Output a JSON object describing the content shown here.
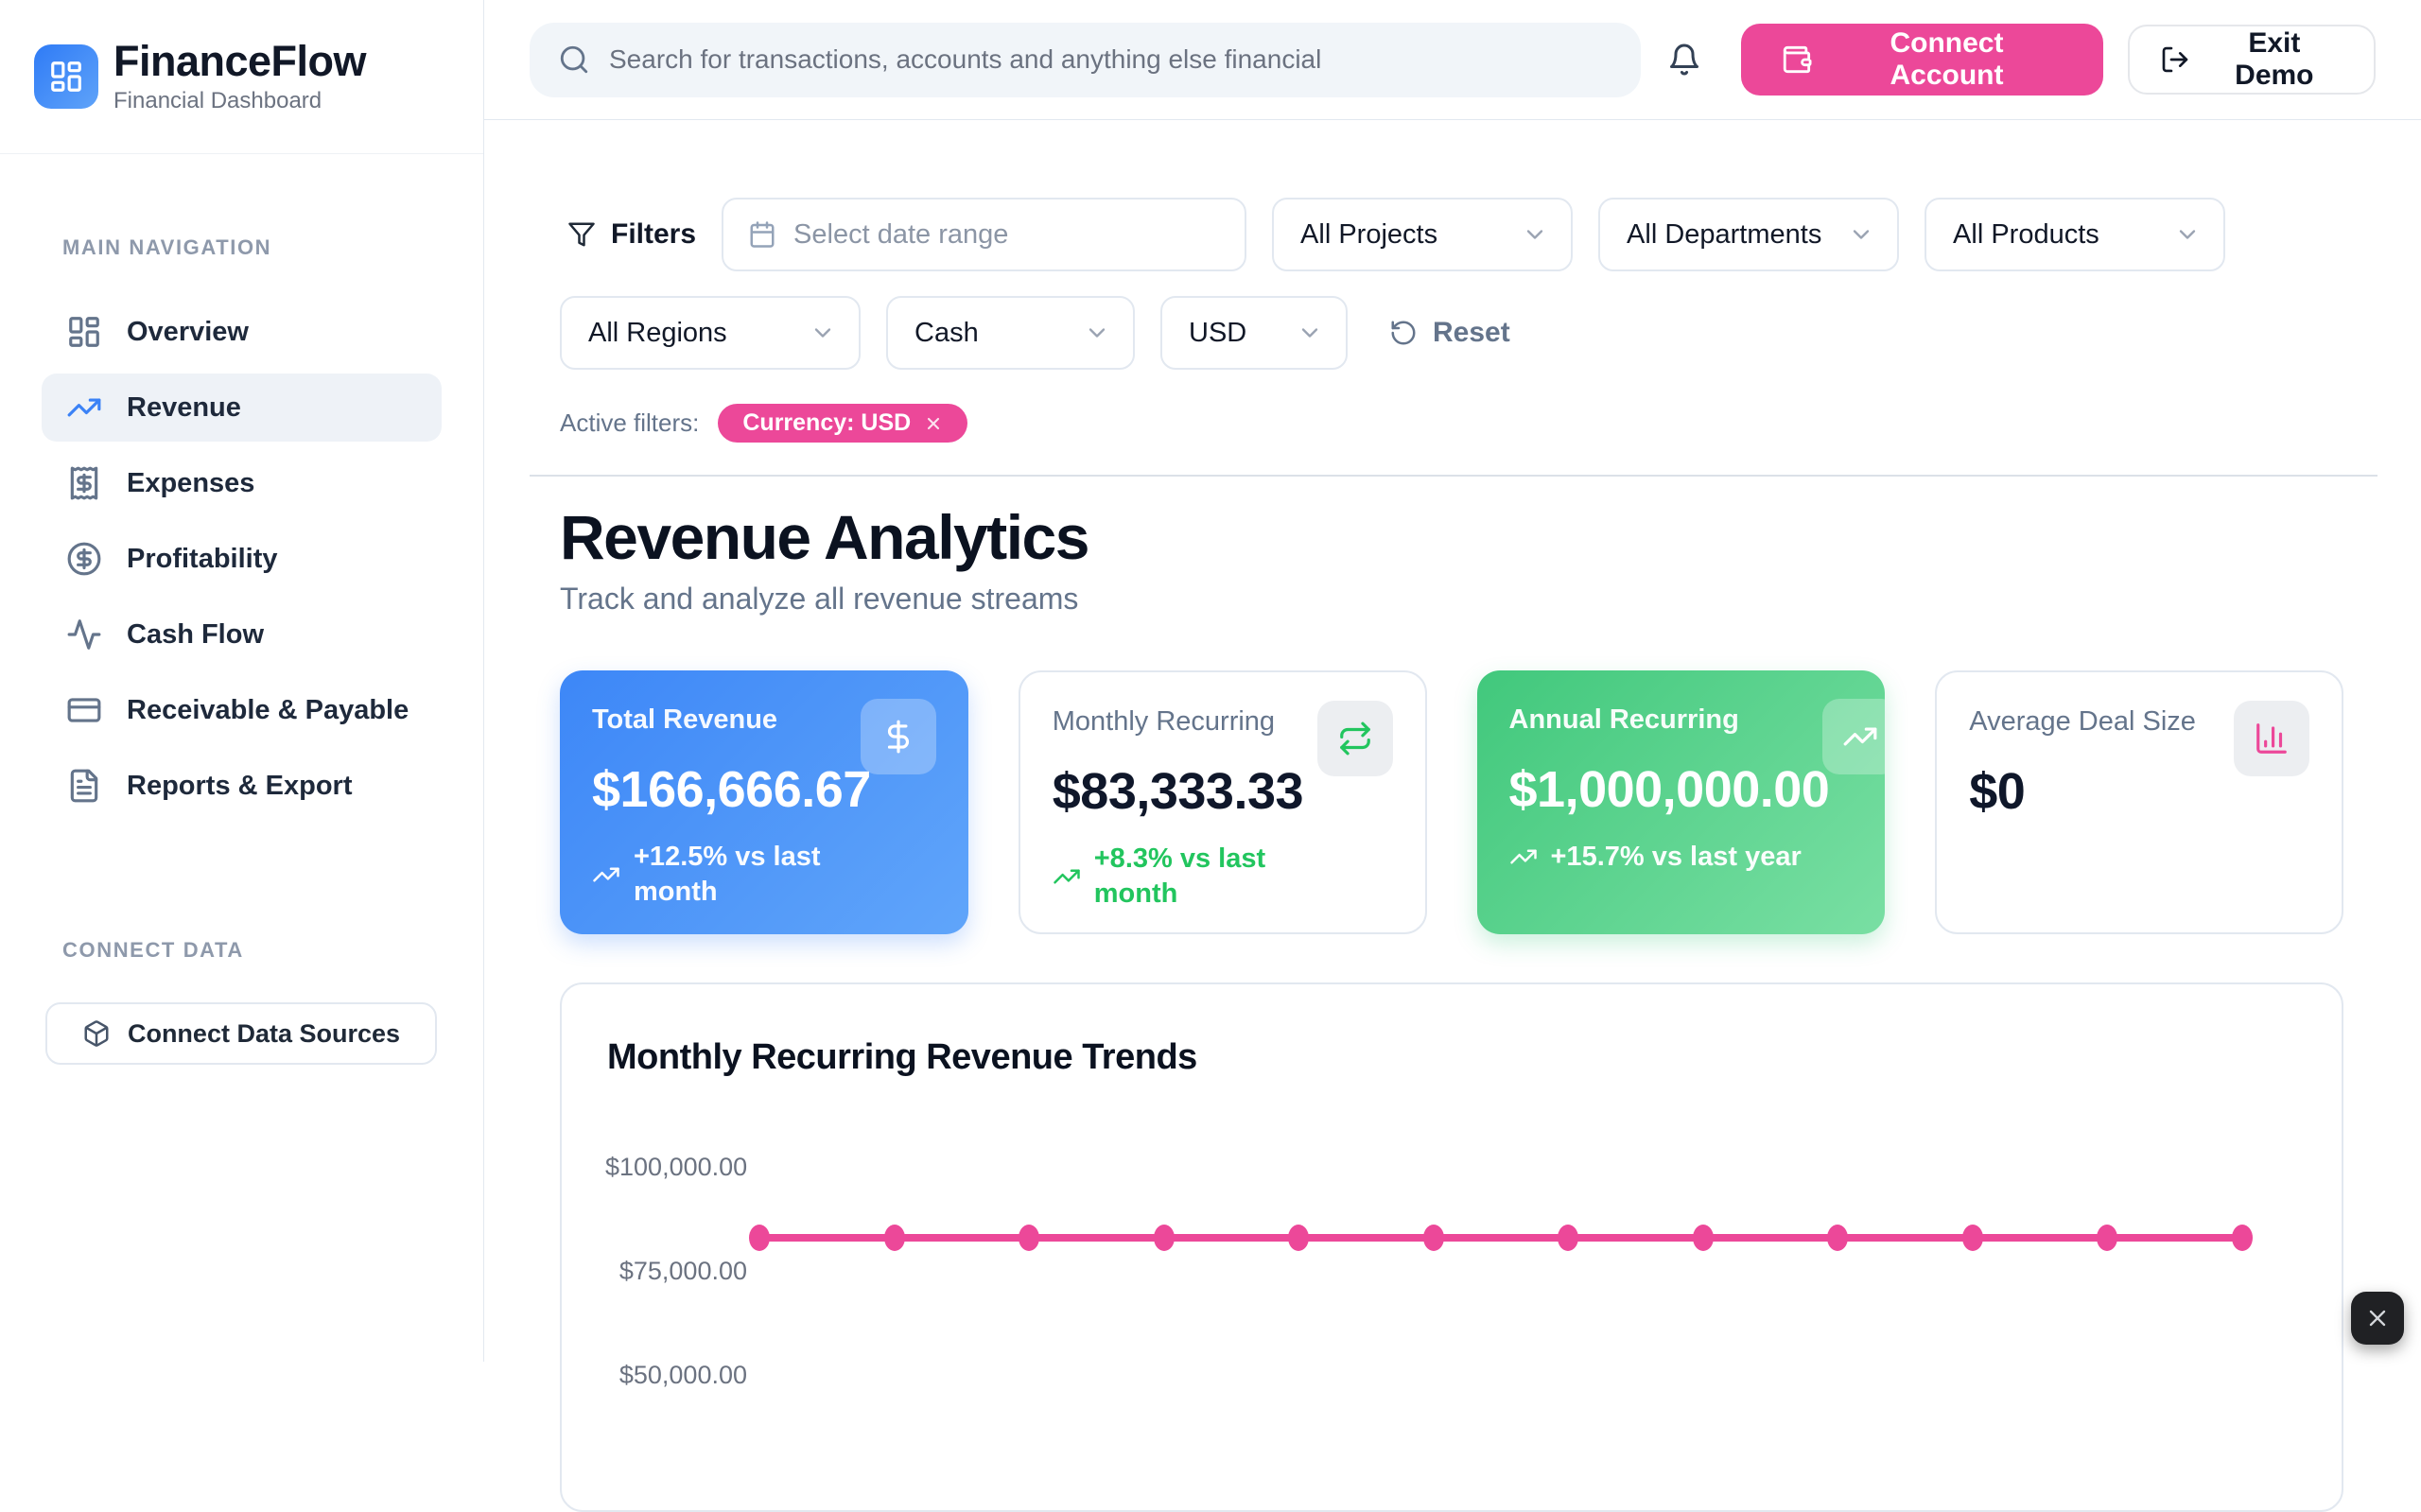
{
  "brand": {
    "name": "FinanceFlow",
    "tagline": "Financial Dashboard"
  },
  "topbar": {
    "search_placeholder": "Search for transactions, accounts and anything else financial",
    "connect_account": "Connect Account",
    "exit_demo": "Exit Demo"
  },
  "sidebar": {
    "section_main": "MAIN NAVIGATION",
    "items": [
      {
        "label": "Overview"
      },
      {
        "label": "Revenue"
      },
      {
        "label": "Expenses"
      },
      {
        "label": "Profitability"
      },
      {
        "label": "Cash Flow"
      },
      {
        "label": "Receivable & Payable"
      },
      {
        "label": "Reports & Export"
      }
    ],
    "section_connect": "CONNECT DATA",
    "connect_sources": "Connect Data Sources"
  },
  "filters": {
    "title": "Filters",
    "date_range_placeholder": "Select date range",
    "projects": "All Projects",
    "departments": "All Departments",
    "products": "All Products",
    "regions": "All Regions",
    "method": "Cash",
    "currency": "USD",
    "reset": "Reset",
    "active_label": "Active filters:",
    "active_chip": "Currency: USD"
  },
  "page": {
    "title": "Revenue Analytics",
    "subtitle": "Track and analyze all revenue streams"
  },
  "metrics": [
    {
      "label": "Total Revenue",
      "value": "$166,666.67",
      "trend": "+12.5% vs last month"
    },
    {
      "label": "Monthly Recurring",
      "value": "$83,333.33",
      "trend": "+8.3% vs last month"
    },
    {
      "label": "Annual Recurring",
      "value": "$1,000,000.00",
      "trend": "+15.7% vs last year"
    },
    {
      "label": "Average Deal Size",
      "value": "$0",
      "trend": ""
    }
  ],
  "chart_data": {
    "type": "line",
    "title": "Monthly Recurring Revenue Trends",
    "series": [
      {
        "name": "Monthly Recurring Revenue",
        "values": [
          83333.33,
          83333.33,
          83333.33,
          83333.33,
          83333.33,
          83333.33,
          83333.33,
          83333.33,
          83333.33,
          83333.33,
          83333.33,
          83333.33
        ]
      }
    ],
    "y_ticks": [
      {
        "label": "$100,000.00",
        "value": 100000
      },
      {
        "label": "$75,000.00",
        "value": 75000
      },
      {
        "label": "$50,000.00",
        "value": 50000
      }
    ],
    "x_tick_labels_visible": false,
    "grid": false,
    "legend": false,
    "line_color": "#ec4899",
    "point_color": "#ec4899",
    "ylim_visible": [
      50000,
      100000
    ]
  },
  "colors": {
    "accent_pink": "#ec4899",
    "accent_blue": "#3b82f6",
    "accent_green": "#22c55e",
    "card_blue_gradient": [
      "#3d87f7",
      "#60a5fa"
    ],
    "card_green_gradient": [
      "#41c87c",
      "#79dfa3"
    ]
  }
}
